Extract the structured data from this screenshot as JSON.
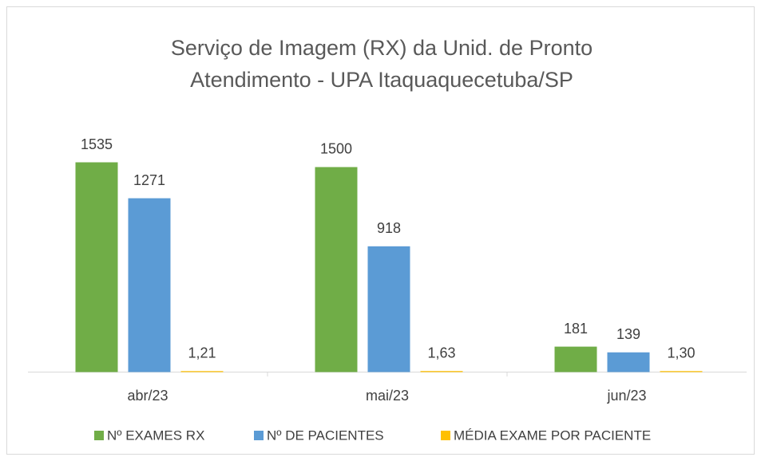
{
  "chart_data": {
    "type": "bar",
    "title": "Serviço de Imagem (RX) da Unid. de Pronto Atendimento - UPA Itaquaquecetuba/SP",
    "categories": [
      "abr/23",
      "mai/23",
      "jun/23"
    ],
    "series": [
      {
        "name": "Nº EXAMES RX",
        "color": "#70ad47",
        "values": [
          1535,
          1500,
          181
        ]
      },
      {
        "name": "Nº DE PACIENTES",
        "color": "#5b9bd5",
        "values": [
          1271,
          918,
          139
        ]
      },
      {
        "name": "MÉDIA EXAME POR PACIENTE",
        "color": "#ffc000",
        "values": [
          1.21,
          1.63,
          1.3
        ],
        "value_labels": [
          "1,21",
          "1,63",
          "1,30"
        ]
      }
    ],
    "legend": "bottom"
  }
}
